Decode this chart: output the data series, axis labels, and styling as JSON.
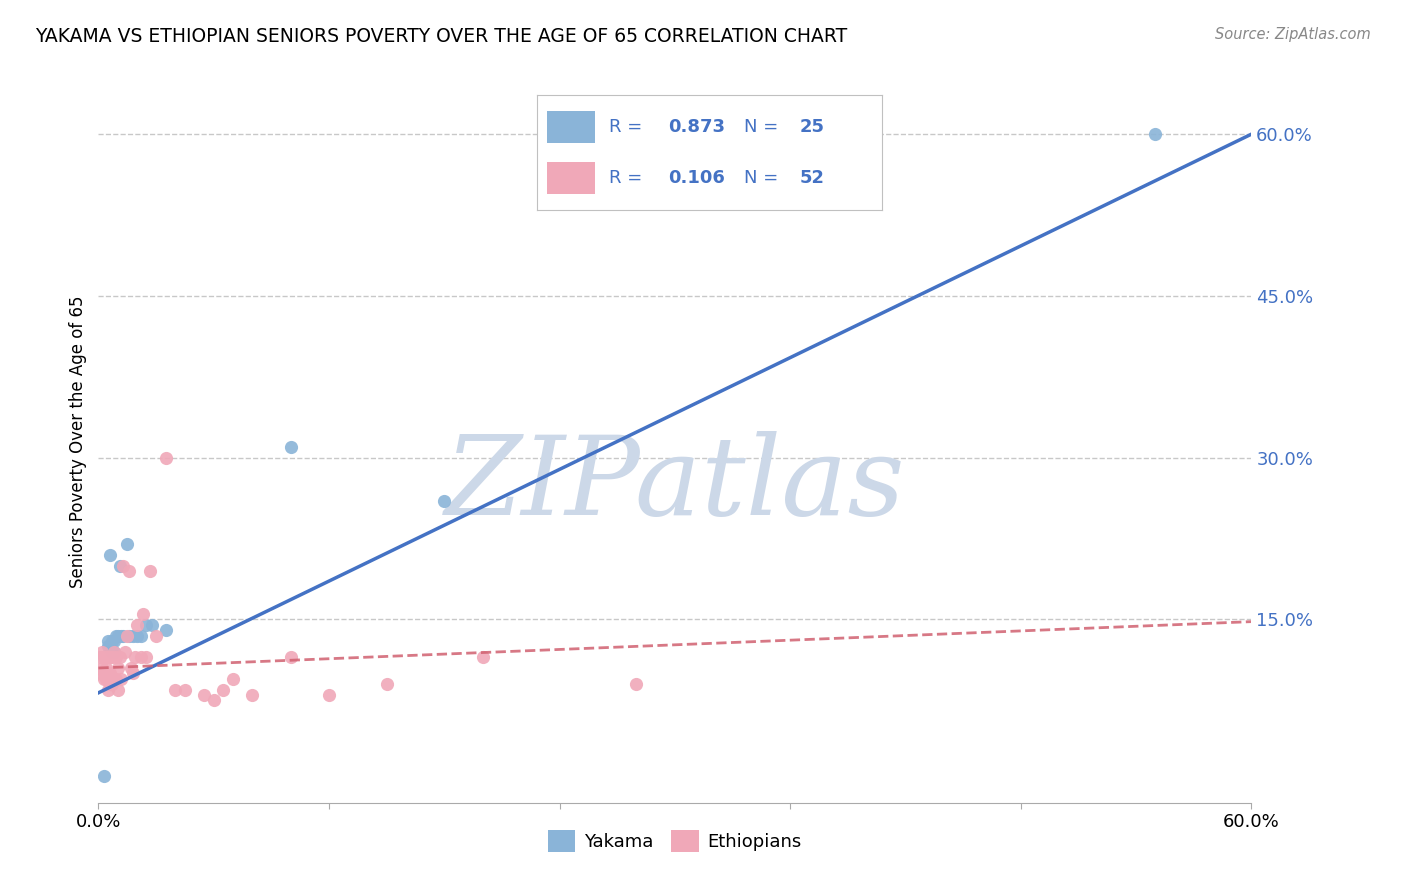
{
  "title": "YAKAMA VS ETHIOPIAN SENIORS POVERTY OVER THE AGE OF 65 CORRELATION CHART",
  "source": "Source: ZipAtlas.com",
  "ylabel": "Seniors Poverty Over the Age of 65",
  "xlim": [
    0.0,
    0.6
  ],
  "ylim": [
    -0.02,
    0.65
  ],
  "xticks": [
    0.0,
    0.12,
    0.24,
    0.36,
    0.48,
    0.6
  ],
  "xticklabels": [
    "0.0%",
    "",
    "",
    "",
    "",
    "60.0%"
  ],
  "ytick_positions": [
    0.15,
    0.3,
    0.45,
    0.6
  ],
  "ytick_labels": [
    "15.0%",
    "30.0%",
    "45.0%",
    "60.0%"
  ],
  "background_color": "#ffffff",
  "grid_color": "#c8c8c8",
  "watermark": "ZIPatlas",
  "watermark_color": "#ccd8e8",
  "yakama_color": "#8ab4d8",
  "ethiopian_color": "#f0a8b8",
  "yakama_line_color": "#4472C4",
  "ethiopian_line_color": "#d06070",
  "legend_R_yakama": "0.873",
  "legend_N_yakama": "25",
  "legend_R_ethiopian": "0.106",
  "legend_N_ethiopian": "52",
  "legend_text_color": "#4472C4",
  "yakama_x": [
    0.003,
    0.005,
    0.005,
    0.006,
    0.006,
    0.007,
    0.007,
    0.008,
    0.008,
    0.009,
    0.01,
    0.011,
    0.012,
    0.013,
    0.015,
    0.016,
    0.018,
    0.02,
    0.022,
    0.025,
    0.028,
    0.035,
    0.1,
    0.18,
    0.55
  ],
  "yakama_y": [
    0.005,
    0.13,
    0.125,
    0.125,
    0.21,
    0.12,
    0.13,
    0.13,
    0.12,
    0.135,
    0.135,
    0.2,
    0.135,
    0.135,
    0.22,
    0.135,
    0.135,
    0.135,
    0.135,
    0.145,
    0.145,
    0.14,
    0.31,
    0.26,
    0.6
  ],
  "ethiopian_x": [
    0.001,
    0.001,
    0.002,
    0.002,
    0.003,
    0.003,
    0.003,
    0.004,
    0.004,
    0.004,
    0.005,
    0.005,
    0.005,
    0.006,
    0.006,
    0.006,
    0.007,
    0.007,
    0.008,
    0.008,
    0.009,
    0.009,
    0.01,
    0.01,
    0.011,
    0.012,
    0.013,
    0.014,
    0.015,
    0.016,
    0.017,
    0.018,
    0.019,
    0.02,
    0.022,
    0.023,
    0.025,
    0.027,
    0.03,
    0.035,
    0.04,
    0.045,
    0.055,
    0.06,
    0.065,
    0.07,
    0.08,
    0.1,
    0.12,
    0.15,
    0.2,
    0.28
  ],
  "ethiopian_y": [
    0.1,
    0.115,
    0.105,
    0.12,
    0.095,
    0.1,
    0.115,
    0.095,
    0.105,
    0.115,
    0.085,
    0.1,
    0.115,
    0.09,
    0.1,
    0.115,
    0.09,
    0.115,
    0.095,
    0.12,
    0.095,
    0.115,
    0.085,
    0.105,
    0.115,
    0.095,
    0.2,
    0.12,
    0.135,
    0.195,
    0.105,
    0.1,
    0.115,
    0.145,
    0.115,
    0.155,
    0.115,
    0.195,
    0.135,
    0.3,
    0.085,
    0.085,
    0.08,
    0.075,
    0.085,
    0.095,
    0.08,
    0.115,
    0.08,
    0.09,
    0.115,
    0.09
  ],
  "yakama_line_x0": 0.0,
  "yakama_line_y0": 0.082,
  "yakama_line_x1": 0.6,
  "yakama_line_y1": 0.6,
  "ethiopian_line_x0": 0.0,
  "ethiopian_line_y0": 0.105,
  "ethiopian_line_x1": 0.6,
  "ethiopian_line_y1": 0.148
}
